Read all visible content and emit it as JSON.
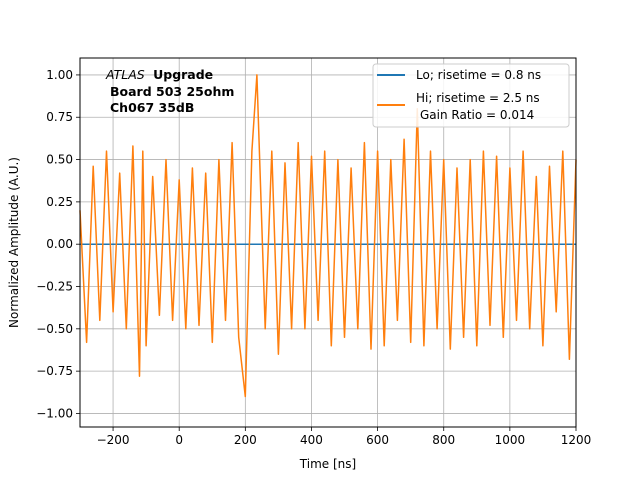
{
  "chart_data": {
    "type": "line",
    "xlabel": "Time [ns]",
    "ylabel": "Normalized Amplitude (A.U.)",
    "xlim": [
      -300,
      1200
    ],
    "ylim": [
      -1.08,
      1.1
    ],
    "x_ticks": [
      -200,
      0,
      200,
      400,
      600,
      800,
      1000,
      1200
    ],
    "y_ticks": [
      -1.0,
      -0.75,
      -0.5,
      -0.25,
      0.0,
      0.25,
      0.5,
      0.75,
      1.0
    ],
    "x_tick_labels": [
      "−200",
      "0",
      "200",
      "400",
      "600",
      "800",
      "1000",
      "1200"
    ],
    "y_tick_labels": [
      "−1.00",
      "−0.75",
      "−0.50",
      "−0.25",
      "0.00",
      "0.25",
      "0.50",
      "0.75",
      "1.00"
    ],
    "grid": true,
    "legend_position": "top-right",
    "annotation": {
      "italic": "ATLAS",
      "line1_bold": "Upgrade",
      "line2": "Board 503 25ohm",
      "line3": "Ch067 35dB"
    },
    "series": [
      {
        "name": "Lo; risetime = 0.8 ns",
        "color": "#1f77b4",
        "x": [
          -300,
          -200,
          0,
          200,
          400,
          600,
          800,
          1000,
          1200
        ],
        "y": [
          0.0,
          0.0,
          0.0,
          0.0,
          0.0,
          0.0,
          0.0,
          0.0,
          0.0
        ]
      },
      {
        "name": "Hi; risetime = 2.5 ns",
        "name_line2": "Gain Ratio = 0.014",
        "color": "#ff7f0e",
        "x": [
          -300,
          -280,
          -260,
          -240,
          -220,
          -200,
          -180,
          -160,
          -140,
          -120,
          -110,
          -100,
          -80,
          -60,
          -40,
          -20,
          0,
          20,
          40,
          60,
          80,
          100,
          120,
          140,
          160,
          180,
          200,
          220,
          235,
          260,
          280,
          300,
          320,
          340,
          360,
          380,
          400,
          420,
          440,
          460,
          480,
          500,
          520,
          540,
          560,
          580,
          600,
          620,
          640,
          660,
          680,
          700,
          720,
          740,
          760,
          780,
          800,
          820,
          840,
          860,
          880,
          900,
          920,
          940,
          960,
          980,
          1000,
          1020,
          1040,
          1060,
          1080,
          1100,
          1120,
          1140,
          1160,
          1180,
          1200
        ],
        "y": [
          0.2,
          -0.58,
          0.46,
          -0.45,
          0.55,
          -0.4,
          0.42,
          -0.5,
          0.58,
          -0.78,
          0.55,
          -0.6,
          0.4,
          -0.42,
          0.5,
          -0.45,
          0.38,
          -0.5,
          0.45,
          -0.48,
          0.42,
          -0.58,
          0.5,
          -0.45,
          0.6,
          -0.55,
          -0.9,
          0.55,
          1.0,
          -0.5,
          0.55,
          -0.65,
          0.48,
          -0.5,
          0.6,
          -0.5,
          0.52,
          -0.45,
          0.55,
          -0.6,
          0.5,
          -0.55,
          0.45,
          -0.5,
          0.6,
          -0.62,
          0.55,
          -0.6,
          0.5,
          -0.45,
          0.62,
          -0.58,
          0.8,
          -0.6,
          0.55,
          -0.5,
          0.5,
          -0.62,
          0.45,
          -0.55,
          0.5,
          -0.6,
          0.55,
          -0.48,
          0.52,
          -0.55,
          0.45,
          -0.45,
          0.55,
          -0.5,
          0.4,
          -0.6,
          0.46,
          -0.4,
          0.55,
          -0.68,
          0.5
        ]
      }
    ]
  }
}
